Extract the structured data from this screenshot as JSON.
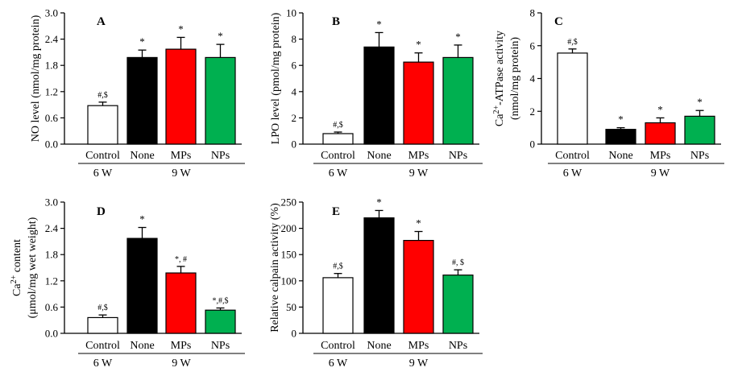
{
  "chart_data": [
    {
      "panel": "A",
      "type": "bar",
      "ylabel": "NO level (nmol/mg protein)",
      "ylim": [
        0,
        3.0
      ],
      "yticks": [
        "0.0",
        "0.6",
        "1.2",
        "1.8",
        "2.4",
        "3.0"
      ],
      "categories": [
        "Control",
        "None",
        "MPs",
        "NPs"
      ],
      "values": [
        0.88,
        1.98,
        2.17,
        1.98
      ],
      "errors": [
        0.08,
        0.17,
        0.27,
        0.3
      ],
      "annotations": [
        "#,$",
        "*",
        "*",
        "*"
      ],
      "colors": [
        "#ffffff",
        "#000000",
        "#ff0000",
        "#00b050"
      ],
      "groups": [
        {
          "label": "6 W",
          "from": 0,
          "to": 0
        },
        {
          "label": "9 W",
          "from": 1,
          "to": 3
        }
      ]
    },
    {
      "panel": "B",
      "type": "bar",
      "ylabel": "LPO level (pmol/mg protein)",
      "ylim": [
        0,
        10
      ],
      "yticks": [
        "0",
        "2",
        "4",
        "6",
        "8",
        "10"
      ],
      "categories": [
        "Control",
        "None",
        "MPs",
        "NPs"
      ],
      "values": [
        0.8,
        7.4,
        6.25,
        6.6
      ],
      "errors": [
        0.12,
        1.1,
        0.7,
        0.95
      ],
      "annotations": [
        "#,$",
        "*",
        "*",
        "*"
      ],
      "colors": [
        "#ffffff",
        "#000000",
        "#ff0000",
        "#00b050"
      ],
      "groups": [
        {
          "label": "6 W",
          "from": 0,
          "to": 0
        },
        {
          "label": "9 W",
          "from": 1,
          "to": 3
        }
      ]
    },
    {
      "panel": "C",
      "type": "bar",
      "ylabel_line1": "Ca2+-ATPase activity",
      "ylabel_line2": "(nmol/mg protein)",
      "ylim": [
        0,
        8
      ],
      "yticks": [
        "0",
        "2",
        "4",
        "6",
        "8"
      ],
      "categories": [
        "Control",
        "None",
        "MPs",
        "NPs"
      ],
      "values": [
        5.55,
        0.9,
        1.3,
        1.7
      ],
      "errors": [
        0.25,
        0.1,
        0.3,
        0.35
      ],
      "annotations": [
        "#,$",
        "*",
        "*",
        "*"
      ],
      "colors": [
        "#ffffff",
        "#000000",
        "#ff0000",
        "#00b050"
      ],
      "groups": [
        {
          "label": "6 W",
          "from": 0,
          "to": 0
        },
        {
          "label": "9 W",
          "from": 1,
          "to": 3
        }
      ]
    },
    {
      "panel": "D",
      "type": "bar",
      "ylabel_line1": "Ca2+ content",
      "ylabel_line2": "(μmol/mg wet weight)",
      "ylim": [
        0,
        3.0
      ],
      "yticks": [
        "0.0",
        "0.6",
        "1.2",
        "1.8",
        "2.4",
        "3.0"
      ],
      "categories": [
        "Control",
        "None",
        "MPs",
        "NPs"
      ],
      "values": [
        0.36,
        2.17,
        1.38,
        0.53
      ],
      "errors": [
        0.06,
        0.25,
        0.15,
        0.05
      ],
      "annotations": [
        "#,$",
        "*",
        "*, #",
        "*,#,$"
      ],
      "colors": [
        "#ffffff",
        "#000000",
        "#ff0000",
        "#00b050"
      ],
      "groups": [
        {
          "label": "6 W",
          "from": 0,
          "to": 0
        },
        {
          "label": "9 W",
          "from": 1,
          "to": 3
        }
      ]
    },
    {
      "panel": "E",
      "type": "bar",
      "ylabel": "Relative calpain activity (%)",
      "ylim": [
        0,
        250
      ],
      "yticks": [
        "0",
        "50",
        "100",
        "150",
        "200",
        "250"
      ],
      "categories": [
        "Control",
        "None",
        "MPs",
        "NPs"
      ],
      "values": [
        106,
        220,
        177,
        111
      ],
      "errors": [
        8,
        14,
        17,
        10
      ],
      "annotations": [
        "#,$",
        "*",
        "*",
        "#, $"
      ],
      "colors": [
        "#ffffff",
        "#000000",
        "#ff0000",
        "#00b050"
      ],
      "groups": [
        {
          "label": "6 W",
          "from": 0,
          "to": 0
        },
        {
          "label": "9 W",
          "from": 1,
          "to": 3
        }
      ]
    }
  ]
}
